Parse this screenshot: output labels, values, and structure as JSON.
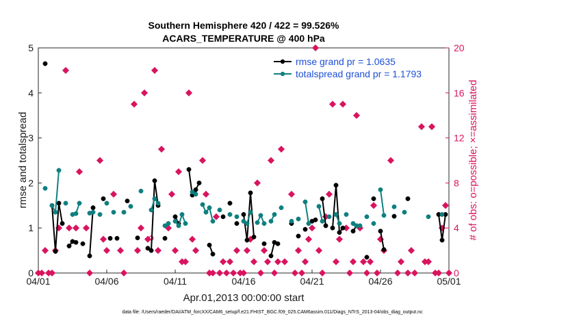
{
  "chart_data": {
    "type": "scatter",
    "title_line1": "Southern Hemisphere 420 / 422 = 99.526%",
    "title_line2": "ACARS_TEMPERATURE @ 400 hPa",
    "xlabel": "Apr.01,2013 00:00:00 start",
    "ylabel_left": "rmse and totalspread",
    "ylabel_right": "# of obs: o=possible; ×=assimilated",
    "footer": "data file: /Users/raeder/DAI/ATM_forcXX/CAM6_setup/f.e21.FHIST_BGC.f09_025.CAM6assim.011/Diags_NTrS_2013-04/obs_diag_output.nc",
    "x_range": [
      0,
      30
    ],
    "x_ticks": [
      0,
      5,
      10,
      15,
      20,
      25,
      30
    ],
    "x_tick_labels": [
      "04/01",
      "04/06",
      "04/11",
      "04/16",
      "04/21",
      "04/26",
      "05/01"
    ],
    "y_left_range": [
      0,
      5
    ],
    "y_left_ticks": [
      "0",
      "1",
      "2",
      "3",
      "4",
      "5"
    ],
    "y_right_range": [
      0,
      20
    ],
    "y_right_ticks": [
      "0",
      "4",
      "8",
      "12",
      "16",
      "20"
    ],
    "colors": {
      "rmse": "#000000",
      "spread": "#0f7f7f",
      "obs": "#d9145f",
      "legend_text": "#1d4fd8"
    },
    "series": [
      {
        "name": "rmse",
        "legend": "rmse grand pr = 1.0635",
        "axis": "left",
        "points": [
          [
            0.5,
            4.65
          ],
          [
            1.0,
            1.5
          ],
          [
            1.25,
            0.48
          ],
          [
            1.5,
            1.55
          ],
          [
            1.75,
            1.1
          ],
          [
            2.25,
            0.6
          ],
          [
            2.5,
            0.7
          ],
          [
            2.75,
            0.68
          ],
          [
            3.25,
            0.65
          ],
          [
            3.75,
            0.38
          ],
          [
            4.0,
            1.45
          ],
          [
            4.75,
            1.65
          ],
          [
            5.25,
            0.77
          ],
          [
            5.75,
            0.77
          ],
          [
            6.5,
            1.6
          ],
          [
            7.25,
            0.78
          ],
          [
            8.0,
            0.55
          ],
          [
            8.25,
            0.5
          ],
          [
            8.5,
            2.05
          ],
          [
            8.75,
            1.5
          ],
          [
            9.25,
            0.77
          ],
          [
            10.0,
            1.25
          ],
          [
            10.25,
            1.1
          ],
          [
            11.0,
            2.3
          ],
          [
            11.25,
            1.73
          ],
          [
            11.5,
            1.85
          ],
          [
            11.75,
            2.0
          ],
          [
            12.5,
            0.62
          ],
          [
            12.75,
            0.42
          ],
          [
            13.5,
            1.25
          ],
          [
            14.0,
            1.55
          ],
          [
            14.5,
            1.1
          ],
          [
            15.0,
            1.3
          ],
          [
            15.25,
            0.73
          ],
          [
            15.5,
            1.78
          ],
          [
            15.75,
            0.8
          ],
          [
            16.5,
            0.65
          ],
          [
            17.0,
            0.38
          ],
          [
            17.25,
            0.68
          ],
          [
            17.5,
            0.65
          ],
          [
            18.5,
            1.1
          ],
          [
            19.0,
            0.82
          ],
          [
            19.5,
            0.97
          ],
          [
            20.0,
            1.15
          ],
          [
            20.25,
            1.18
          ],
          [
            20.75,
            1.65
          ],
          [
            21.0,
            1.05
          ],
          [
            21.5,
            1.0
          ],
          [
            21.75,
            1.95
          ],
          [
            22.0,
            0.9
          ],
          [
            22.25,
            1.0
          ],
          [
            23.0,
            0.93
          ],
          [
            23.25,
            1.05
          ],
          [
            24.0,
            0.35
          ],
          [
            24.5,
            1.65
          ],
          [
            25.0,
            0.93
          ],
          [
            25.25,
            0.52
          ],
          [
            26.0,
            1.26
          ],
          [
            27.0,
            1.65
          ],
          [
            29.25,
            1.3
          ],
          [
            29.5,
            0.73
          ],
          [
            29.75,
            1.3
          ]
        ]
      },
      {
        "name": "totalspread",
        "legend": "totalspread grand pr = 1.1793",
        "axis": "left",
        "points": [
          [
            0.5,
            1.88
          ],
          [
            1.0,
            1.5
          ],
          [
            1.25,
            1.35
          ],
          [
            1.5,
            2.28
          ],
          [
            2.0,
            1.55
          ],
          [
            2.5,
            1.3
          ],
          [
            2.75,
            1.32
          ],
          [
            3.0,
            1.55
          ],
          [
            3.75,
            1.33
          ],
          [
            4.0,
            1.35
          ],
          [
            4.5,
            1.3
          ],
          [
            5.0,
            1.55
          ],
          [
            5.5,
            1.35
          ],
          [
            6.25,
            1.35
          ],
          [
            6.75,
            1.48
          ],
          [
            7.5,
            1.82
          ],
          [
            8.25,
            1.4
          ],
          [
            8.5,
            1.65
          ],
          [
            8.75,
            1.55
          ],
          [
            9.25,
            1.05
          ],
          [
            9.5,
            1.1
          ],
          [
            10.0,
            1.15
          ],
          [
            10.25,
            1.05
          ],
          [
            10.5,
            1.3
          ],
          [
            10.75,
            1.1
          ],
          [
            11.25,
            1.8
          ],
          [
            11.5,
            1.75
          ],
          [
            12.0,
            1.52
          ],
          [
            12.25,
            1.35
          ],
          [
            12.5,
            1.45
          ],
          [
            12.75,
            1.15
          ],
          [
            13.25,
            1.4
          ],
          [
            14.0,
            1.3
          ],
          [
            14.5,
            1.25
          ],
          [
            15.0,
            1.15
          ],
          [
            15.25,
            1.1
          ],
          [
            15.5,
            1.35
          ],
          [
            16.0,
            1.12
          ],
          [
            16.25,
            1.28
          ],
          [
            16.5,
            1.1
          ],
          [
            17.0,
            1.15
          ],
          [
            17.25,
            1.3
          ],
          [
            17.75,
            1.45
          ],
          [
            18.5,
            1.15
          ],
          [
            19.0,
            1.2
          ],
          [
            19.5,
            1.58
          ],
          [
            19.75,
            1.1
          ],
          [
            20.5,
            1.48
          ],
          [
            20.75,
            1.15
          ],
          [
            21.25,
            1.25
          ],
          [
            21.75,
            1.3
          ],
          [
            22.0,
            1.1
          ],
          [
            22.5,
            1.3
          ],
          [
            23.0,
            1.1
          ],
          [
            23.25,
            1.05
          ],
          [
            23.5,
            1.05
          ],
          [
            24.0,
            1.25
          ],
          [
            24.5,
            1.1
          ],
          [
            25.0,
            1.85
          ],
          [
            25.25,
            1.28
          ],
          [
            26.0,
            1.47
          ],
          [
            26.75,
            1.35
          ],
          [
            28.5,
            1.25
          ],
          [
            29.5,
            1.3
          ]
        ]
      }
    ],
    "obs_possible": [
      [
        0,
        0
      ],
      [
        0.25,
        0
      ],
      [
        0.5,
        2
      ],
      [
        0.75,
        0
      ],
      [
        1.0,
        0
      ],
      [
        1.25,
        2
      ],
      [
        1.5,
        4
      ],
      [
        2.0,
        18
      ],
      [
        2.25,
        4
      ],
      [
        2.75,
        4
      ],
      [
        3.0,
        9
      ],
      [
        3.5,
        4
      ],
      [
        3.75,
        0
      ],
      [
        4.5,
        10
      ],
      [
        4.75,
        3
      ],
      [
        5.0,
        2
      ],
      [
        5.5,
        7
      ],
      [
        6.0,
        2
      ],
      [
        6.25,
        0
      ],
      [
        7.0,
        15
      ],
      [
        7.25,
        2
      ],
      [
        7.5,
        4
      ],
      [
        7.75,
        16
      ],
      [
        8.0,
        3
      ],
      [
        8.5,
        18
      ],
      [
        8.75,
        2
      ],
      [
        9.0,
        11
      ],
      [
        9.5,
        4
      ],
      [
        9.75,
        7
      ],
      [
        10.0,
        2
      ],
      [
        10.25,
        9
      ],
      [
        10.5,
        1
      ],
      [
        10.75,
        1
      ],
      [
        11.0,
        16
      ],
      [
        11.25,
        3
      ],
      [
        11.5,
        2
      ],
      [
        12.0,
        10
      ],
      [
        12.25,
        7
      ],
      [
        12.5,
        0
      ],
      [
        12.75,
        0
      ],
      [
        13.0,
        5
      ],
      [
        13.25,
        0
      ],
      [
        13.5,
        1
      ],
      [
        13.75,
        0
      ],
      [
        14.0,
        1
      ],
      [
        14.25,
        0
      ],
      [
        14.5,
        2
      ],
      [
        14.75,
        0
      ],
      [
        15.0,
        0
      ],
      [
        15.25,
        2
      ],
      [
        15.5,
        3
      ],
      [
        15.75,
        1
      ],
      [
        16.0,
        8
      ],
      [
        16.25,
        0
      ],
      [
        16.5,
        2
      ],
      [
        16.75,
        1
      ],
      [
        17.0,
        10
      ],
      [
        17.25,
        0
      ],
      [
        17.5,
        1
      ],
      [
        17.75,
        11
      ],
      [
        18.0,
        1
      ],
      [
        18.5,
        7
      ],
      [
        18.75,
        0
      ],
      [
        19.0,
        2
      ],
      [
        19.25,
        0
      ],
      [
        19.5,
        1
      ],
      [
        19.75,
        3
      ],
      [
        20.0,
        4
      ],
      [
        20.25,
        20
      ],
      [
        20.5,
        2
      ],
      [
        20.75,
        0
      ],
      [
        21.0,
        5
      ],
      [
        21.25,
        7
      ],
      [
        21.5,
        15
      ],
      [
        21.75,
        1
      ],
      [
        22.0,
        3
      ],
      [
        22.25,
        15
      ],
      [
        22.5,
        4
      ],
      [
        22.75,
        0
      ],
      [
        23.0,
        1
      ],
      [
        23.25,
        14
      ],
      [
        23.5,
        4
      ],
      [
        23.75,
        1
      ],
      [
        24.0,
        0
      ],
      [
        24.25,
        1
      ],
      [
        24.5,
        6
      ],
      [
        24.75,
        0
      ],
      [
        25.0,
        3
      ],
      [
        25.25,
        2
      ],
      [
        25.75,
        10
      ],
      [
        26.25,
        0
      ],
      [
        26.5,
        1
      ],
      [
        27.0,
        0
      ],
      [
        27.25,
        2
      ],
      [
        27.5,
        0
      ],
      [
        28.0,
        13
      ],
      [
        28.25,
        1
      ],
      [
        28.5,
        1
      ],
      [
        28.75,
        13
      ],
      [
        29.0,
        0
      ],
      [
        29.25,
        0
      ],
      [
        29.5,
        4
      ],
      [
        29.75,
        6
      ],
      [
        30.0,
        0
      ]
    ],
    "obs_assimilated": [
      [
        8.25,
        3.1
      ]
    ]
  }
}
